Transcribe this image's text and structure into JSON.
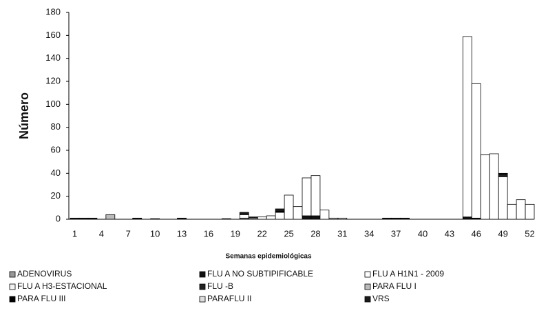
{
  "chart_data": {
    "type": "stacked-bar",
    "y_label": "Número",
    "x_label": "Semanas epidemiológicas",
    "categories": [
      1,
      null,
      null,
      4,
      null,
      null,
      7,
      null,
      null,
      10,
      null,
      null,
      13,
      null,
      null,
      16,
      null,
      null,
      19,
      null,
      null,
      22,
      null,
      null,
      25,
      null,
      null,
      28,
      null,
      null,
      31,
      null,
      null,
      34,
      null,
      null,
      37,
      null,
      null,
      40,
      null,
      null,
      43,
      null,
      null,
      46,
      null,
      null,
      49,
      null,
      null,
      52
    ],
    "ylim": [
      0,
      180
    ],
    "yticks": [
      0,
      20,
      40,
      60,
      80,
      100,
      120,
      140,
      160,
      180
    ],
    "series": [
      {
        "name": "ADENOVIRUS",
        "color": "#999999",
        "values": [
          0,
          0,
          0,
          0,
          0,
          0,
          0,
          0,
          0,
          0,
          0,
          0,
          0,
          0,
          0,
          0,
          0,
          0,
          0,
          1,
          0,
          0,
          0,
          0,
          0,
          0,
          0,
          0,
          0,
          0,
          0,
          0,
          0,
          0,
          0,
          0,
          0,
          0,
          0,
          0,
          0,
          0,
          0,
          0,
          0,
          0,
          0,
          0,
          0,
          0,
          0,
          0
        ]
      },
      {
        "name": "FLU A NO SUBTIPIFICABLE",
        "color": "#111111",
        "values": [
          0,
          0,
          0,
          0,
          0,
          0,
          0,
          0,
          0,
          0,
          0,
          0,
          0,
          0,
          0,
          0,
          0,
          0,
          0,
          0,
          0,
          0,
          0,
          0,
          0,
          0,
          3,
          3,
          0,
          0,
          0,
          0,
          0,
          0,
          0,
          0,
          0,
          0,
          0,
          0,
          0,
          0,
          0,
          0,
          2,
          1,
          0,
          0,
          0,
          0,
          0,
          0
        ]
      },
      {
        "name": "FLU A H1N1 - 2009",
        "color": "#ffffff",
        "values": [
          0,
          0,
          0,
          0,
          0,
          0,
          0,
          0,
          0,
          0,
          0,
          0,
          0,
          0,
          0,
          0,
          0,
          0,
          0,
          3,
          1,
          2,
          3,
          6,
          21,
          11,
          33,
          35,
          8,
          0,
          0,
          0,
          0,
          0,
          0,
          0,
          0,
          0,
          0,
          0,
          0,
          0,
          0,
          0,
          157,
          117,
          56,
          57,
          37,
          13,
          17,
          13
        ]
      },
      {
        "name": "FLU A H3-ESTACIONAL",
        "color": "#f2f2f2",
        "values": [
          0,
          0,
          0,
          0,
          0,
          0,
          0,
          0,
          0,
          0,
          0,
          0,
          0,
          0,
          0,
          0,
          0,
          0,
          0,
          0,
          0,
          0,
          0,
          0,
          0,
          0,
          0,
          0,
          0,
          0,
          1,
          0,
          0,
          0,
          0,
          0,
          0,
          0,
          0,
          0,
          0,
          0,
          0,
          0,
          0,
          0,
          0,
          0,
          0,
          0,
          0,
          0
        ]
      },
      {
        "name": "FLU -B",
        "color": "#222222",
        "values": [
          0,
          0,
          0,
          0,
          0,
          0,
          0,
          0,
          0,
          0,
          0,
          0,
          0,
          0,
          0,
          0,
          0,
          0,
          0,
          0,
          0,
          0,
          0,
          0,
          0,
          0,
          0,
          0,
          0,
          0,
          0,
          0,
          0,
          0,
          0,
          0,
          0,
          0,
          0,
          0,
          0,
          0,
          0,
          0,
          0,
          0,
          0,
          0,
          2,
          0,
          0,
          0
        ]
      },
      {
        "name": "PARA FLU I",
        "color": "#bbbbbb",
        "values": [
          0,
          0,
          0,
          0,
          4,
          0,
          0,
          0,
          0,
          0,
          0,
          0,
          0,
          0,
          0,
          0,
          0,
          0,
          0,
          0,
          0,
          0,
          0,
          0,
          0,
          0,
          0,
          0,
          0,
          0,
          0,
          0,
          0,
          0,
          0,
          0,
          0,
          0,
          0,
          0,
          0,
          0,
          0,
          0,
          0,
          0,
          0,
          0,
          0,
          0,
          0,
          0
        ]
      },
      {
        "name": "PARA FLU III",
        "color": "#000000",
        "values": [
          0,
          0,
          0,
          0,
          0,
          0,
          0,
          0,
          0,
          0,
          0,
          0,
          0,
          0,
          0,
          0,
          0,
          0,
          0,
          0,
          0,
          0,
          0,
          1,
          0,
          0,
          0,
          0,
          0,
          0,
          0,
          0,
          0,
          0,
          0,
          0,
          0,
          0,
          0,
          0,
          0,
          0,
          0,
          0,
          0,
          0,
          0,
          0,
          0,
          0,
          0,
          0
        ]
      },
      {
        "name": "PARAFLU II",
        "color": "#dddddd",
        "values": [
          0,
          0,
          0,
          0,
          0,
          0,
          0,
          0,
          0,
          0,
          0,
          0,
          0,
          0,
          0,
          0,
          0,
          0,
          0,
          0,
          0,
          0,
          0,
          0,
          0,
          0,
          0,
          0,
          0,
          1,
          0,
          0,
          0,
          0,
          0,
          0,
          0,
          0,
          0,
          0,
          0,
          0,
          0,
          0,
          0,
          0,
          0,
          0,
          0,
          0,
          0,
          0
        ]
      },
      {
        "name": "VRS",
        "color": "#1a1a1a",
        "values": [
          1,
          1,
          1,
          0,
          0,
          0,
          0,
          1,
          0,
          0.5,
          0,
          0,
          1,
          0,
          0,
          0,
          0,
          0.5,
          0,
          2,
          1,
          0,
          0,
          2,
          0,
          0,
          0,
          0,
          0,
          0,
          0,
          0,
          0,
          0,
          0,
          1,
          1,
          1,
          0,
          0,
          0,
          0,
          0,
          0,
          0,
          0,
          0,
          0,
          1,
          0,
          0,
          0
        ]
      }
    ]
  }
}
